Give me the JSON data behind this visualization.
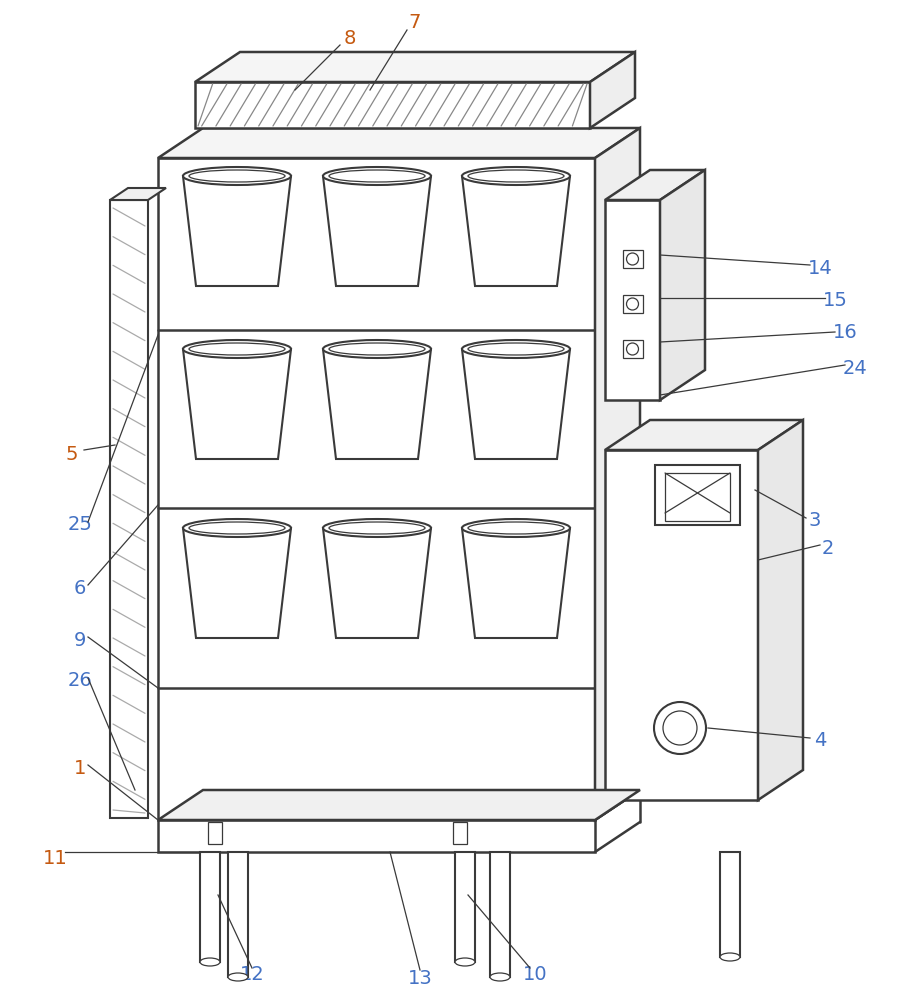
{
  "line_color": "#3a3a3a",
  "label_color_blue": "#4472c4",
  "label_color_orange": "#c55a11",
  "lw": 1.5,
  "lw_thin": 0.9,
  "lw_thick": 1.8
}
